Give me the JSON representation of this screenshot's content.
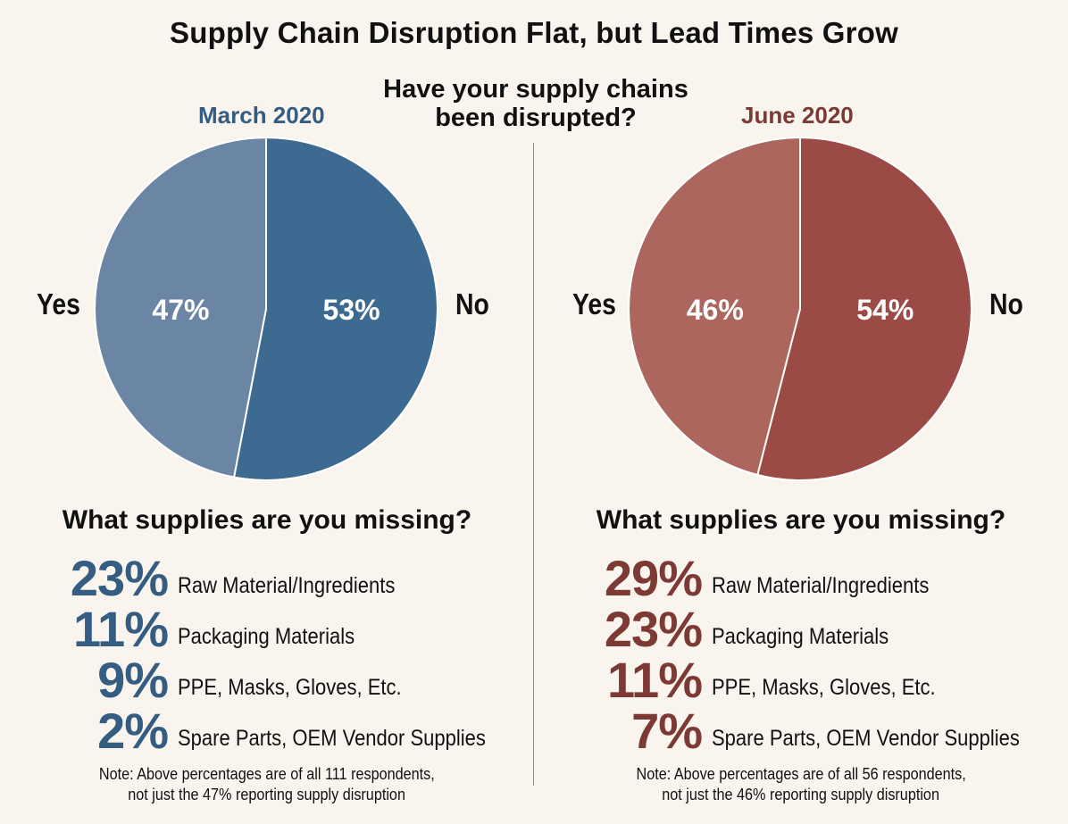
{
  "title": "Supply Chain Disruption Flat, but Lead Times Grow",
  "question": [
    "Have your supply chains",
    "been disrupted?"
  ],
  "colors": {
    "background": "#f9f5ee",
    "blue_no": "#3d6a91",
    "blue_yes": "#6b86a4",
    "red_no": "#9c4a46",
    "red_yes": "#ac665d",
    "blue_text": "#355d82",
    "red_text": "#7d3a35"
  },
  "chart_data": [
    {
      "type": "pie",
      "title": "March 2020",
      "categories": [
        "No",
        "Yes"
      ],
      "values": [
        53,
        47
      ],
      "value_labels": [
        "53%",
        "47%"
      ]
    },
    {
      "type": "pie",
      "title": "June 2020",
      "categories": [
        "No",
        "Yes"
      ],
      "values": [
        54,
        46
      ],
      "value_labels": [
        "54%",
        "46%"
      ]
    },
    {
      "type": "table",
      "title": "What supplies are you missing?",
      "period": "March 2020",
      "categories": [
        "Raw Material/Ingredients",
        "Packaging Materials",
        "PPE, Masks, Gloves, Etc.",
        "Spare Parts, OEM Vendor Supplies"
      ],
      "values": [
        23,
        11,
        9,
        2
      ],
      "value_labels": [
        "23%",
        "11%",
        "9%",
        "2%"
      ]
    },
    {
      "type": "table",
      "title": "What supplies are you missing?",
      "period": "June 2020",
      "categories": [
        "Raw Material/Ingredients",
        "Packaging Materials",
        "PPE, Masks, Gloves, Etc.",
        "Spare Parts, OEM Vendor Supplies"
      ],
      "values": [
        29,
        23,
        11,
        7
      ],
      "value_labels": [
        "29%",
        "23%",
        "11%",
        "7%"
      ]
    }
  ],
  "panels": [
    {
      "period": "March 2020",
      "yes_label": "Yes",
      "no_label": "No",
      "missing_title": "What supplies are you missing?",
      "notes": [
        "Note: Above percentages are of all 111 respondents,",
        "not just the 47% reporting supply disruption"
      ]
    },
    {
      "period": "June 2020",
      "yes_label": "Yes",
      "no_label": "No",
      "missing_title": "What supplies are you missing?",
      "notes": [
        "Note: Above percentages are of all 56 respondents,",
        "not just the 46% reporting supply disruption"
      ]
    }
  ]
}
